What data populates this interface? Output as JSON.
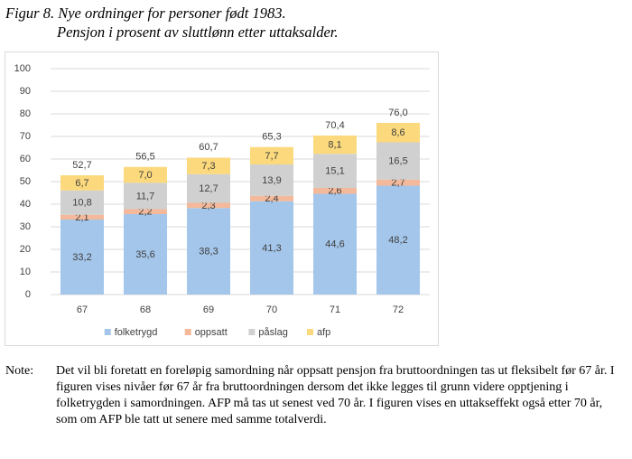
{
  "figure": {
    "title_line1": "Figur 8. Nye ordninger for personer født 1983.",
    "title_line2": "Pensjon i prosent av sluttlønn etter uttaksalder."
  },
  "chart_data": {
    "type": "bar",
    "stacked": true,
    "categories": [
      "67",
      "68",
      "69",
      "70",
      "71",
      "72"
    ],
    "series": [
      {
        "name": "folketrygd",
        "color": "#a3c6ea",
        "values": [
          33.2,
          35.6,
          38.3,
          41.3,
          44.6,
          48.2
        ],
        "labels": [
          "33,2",
          "35,6",
          "38,3",
          "41,3",
          "44,6",
          "48,2"
        ]
      },
      {
        "name": "oppsatt",
        "color": "#f4b99a",
        "values": [
          2.1,
          2.2,
          2.3,
          2.4,
          2.6,
          2.7
        ],
        "labels": [
          "2,1",
          "2,2",
          "2,3",
          "2,4",
          "2,6",
          "2,7"
        ]
      },
      {
        "name": "påslag",
        "color": "#d0d0d0",
        "values": [
          10.8,
          11.7,
          12.7,
          13.9,
          15.1,
          16.5
        ],
        "labels": [
          "10,8",
          "11,7",
          "12,7",
          "13,9",
          "15,1",
          "16,5"
        ]
      },
      {
        "name": "afp",
        "color": "#fbd97c",
        "values": [
          6.7,
          7.0,
          7.3,
          7.7,
          8.1,
          8.6
        ],
        "labels": [
          "6,7",
          "7,0",
          "7,3",
          "7,7",
          "8,1",
          "8,6"
        ]
      }
    ],
    "totals": [
      52.7,
      56.5,
      60.7,
      65.3,
      70.4,
      76.0
    ],
    "total_labels": [
      "52,7",
      "56,5",
      "60,7",
      "65,3",
      "70,4",
      "76,0"
    ],
    "ylim": [
      0,
      100
    ],
    "yticks": [
      0,
      10,
      20,
      30,
      40,
      50,
      60,
      70,
      80,
      90,
      100
    ],
    "grid": true,
    "legend_position": "bottom"
  },
  "note": {
    "label": "Note:",
    "text": "Det vil bli foretatt en foreløpig samordning når oppsatt pensjon fra bruttoordningen tas ut fleksibelt før 67 år. I figuren vises nivåer før 67 år fra bruttoordningen dersom det ikke legges til grunn videre opptjening i folketrygden i samordningen. AFP må tas ut senest ved 70 år. I figuren vises en uttakseffekt også etter 70 år, som om AFP ble tatt ut senere med samme totalverdi."
  }
}
